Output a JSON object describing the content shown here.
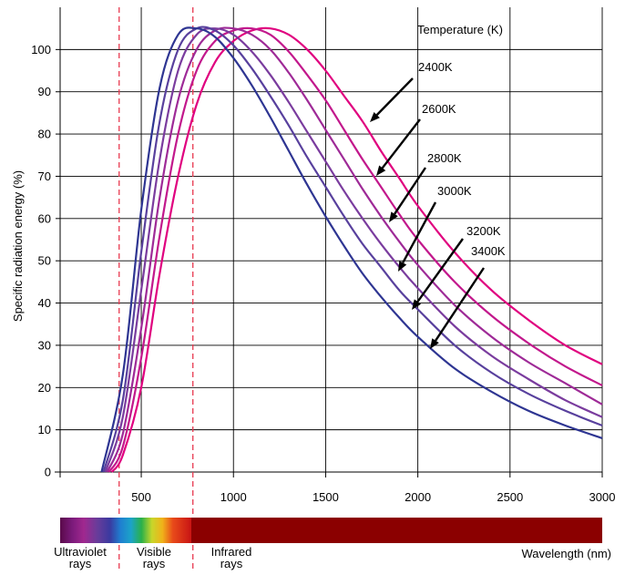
{
  "chart_data": {
    "type": "line",
    "title": "",
    "xlabel": "Wavelength (nm)",
    "ylabel": "Specific radiation energy (%)",
    "legend_title": "Temperature (K)",
    "xlim": [
      60,
      3000
    ],
    "ylim": [
      0,
      110
    ],
    "x_ticks": [
      500,
      1000,
      1500,
      2000,
      2500,
      3000
    ],
    "y_ticks": [
      0,
      10,
      20,
      30,
      40,
      50,
      60,
      70,
      80,
      90,
      100
    ],
    "grid": true,
    "boundaries_nm": [
      380,
      780
    ],
    "bands": [
      {
        "label": "Ultraviolet rays",
        "line1": "Ultraviolet",
        "line2": "rays"
      },
      {
        "label": "Visible rays",
        "line1": "Visible",
        "line2": "rays"
      },
      {
        "label": "Infrared rays",
        "line1": "Infrared",
        "line2": "rays"
      }
    ],
    "series": [
      {
        "name": "2400K",
        "color": "#e0007f",
        "peak_x": 1210,
        "peak_y": 105,
        "points": [
          [
            340,
            0
          ],
          [
            400,
            4
          ],
          [
            500,
            20
          ],
          [
            600,
            47
          ],
          [
            700,
            70
          ],
          [
            800,
            87
          ],
          [
            900,
            97
          ],
          [
            1000,
            102
          ],
          [
            1100,
            104.5
          ],
          [
            1200,
            105
          ],
          [
            1300,
            103.5
          ],
          [
            1400,
            100
          ],
          [
            1500,
            95
          ],
          [
            1600,
            89
          ],
          [
            1700,
            83
          ],
          [
            1800,
            76
          ],
          [
            1900,
            69.5
          ],
          [
            2000,
            63
          ],
          [
            2200,
            52
          ],
          [
            2400,
            43
          ],
          [
            2600,
            36
          ],
          [
            2800,
            30
          ],
          [
            3000,
            25.5
          ]
        ]
      },
      {
        "name": "2600K",
        "color": "#c2188c",
        "peak_x": 1120,
        "peak_y": 105,
        "points": [
          [
            325,
            0
          ],
          [
            400,
            6
          ],
          [
            500,
            27
          ],
          [
            600,
            56
          ],
          [
            700,
            80
          ],
          [
            800,
            95
          ],
          [
            900,
            102
          ],
          [
            1000,
            104.5
          ],
          [
            1100,
            105
          ],
          [
            1200,
            103.5
          ],
          [
            1300,
            99.5
          ],
          [
            1400,
            94
          ],
          [
            1500,
            88
          ],
          [
            1600,
            81
          ],
          [
            1700,
            74
          ],
          [
            1800,
            67.5
          ],
          [
            1900,
            61
          ],
          [
            2000,
            55
          ],
          [
            2200,
            45
          ],
          [
            2400,
            37
          ],
          [
            2600,
            30.5
          ],
          [
            2800,
            25
          ],
          [
            3000,
            20.5
          ]
        ]
      },
      {
        "name": "2800K",
        "color": "#9e2a97",
        "peak_x": 1040,
        "peak_y": 105,
        "points": [
          [
            315,
            0
          ],
          [
            400,
            9
          ],
          [
            500,
            34
          ],
          [
            600,
            65
          ],
          [
            700,
            88
          ],
          [
            800,
            100
          ],
          [
            900,
            104.5
          ],
          [
            1000,
            105
          ],
          [
            1100,
            103.5
          ],
          [
            1200,
            100
          ],
          [
            1300,
            94.5
          ],
          [
            1400,
            88
          ],
          [
            1500,
            81
          ],
          [
            1600,
            74
          ],
          [
            1700,
            67
          ],
          [
            1800,
            60.5
          ],
          [
            1900,
            54.5
          ],
          [
            2000,
            49
          ],
          [
            2200,
            39.5
          ],
          [
            2400,
            32
          ],
          [
            2600,
            26
          ],
          [
            2800,
            21
          ],
          [
            3000,
            16
          ]
        ]
      },
      {
        "name": "3000K",
        "color": "#7a3c9e",
        "peak_x": 970,
        "peak_y": 105,
        "points": [
          [
            305,
            0
          ],
          [
            400,
            13
          ],
          [
            500,
            43
          ],
          [
            600,
            74
          ],
          [
            700,
            95
          ],
          [
            800,
            103.5
          ],
          [
            900,
            105
          ],
          [
            1000,
            103.5
          ],
          [
            1100,
            99.5
          ],
          [
            1200,
            94
          ],
          [
            1300,
            87.5
          ],
          [
            1400,
            80.5
          ],
          [
            1500,
            73.5
          ],
          [
            1600,
            66.5
          ],
          [
            1700,
            60
          ],
          [
            1800,
            54
          ],
          [
            1900,
            48.5
          ],
          [
            2000,
            43.5
          ],
          [
            2200,
            34.5
          ],
          [
            2400,
            27.5
          ],
          [
            2600,
            22
          ],
          [
            2800,
            17
          ],
          [
            3000,
            13
          ]
        ]
      },
      {
        "name": "3200K",
        "color": "#58409d",
        "peak_x": 920,
        "peak_y": 105,
        "points": [
          [
            295,
            0
          ],
          [
            400,
            17
          ],
          [
            500,
            52
          ],
          [
            600,
            83
          ],
          [
            700,
            100
          ],
          [
            800,
            105
          ],
          [
            900,
            104.5
          ],
          [
            1000,
            101
          ],
          [
            1100,
            95.5
          ],
          [
            1200,
            89
          ],
          [
            1300,
            82
          ],
          [
            1400,
            74.5
          ],
          [
            1500,
            67.5
          ],
          [
            1600,
            60.5
          ],
          [
            1700,
            54
          ],
          [
            1800,
            48.5
          ],
          [
            1900,
            43
          ],
          [
            2000,
            38.5
          ],
          [
            2200,
            30
          ],
          [
            2400,
            23.5
          ],
          [
            2600,
            18.5
          ],
          [
            2800,
            14.5
          ],
          [
            3000,
            11
          ]
        ]
      },
      {
        "name": "3400K",
        "color": "#2e3592",
        "peak_x": 870,
        "peak_y": 105,
        "points": [
          [
            285,
            0
          ],
          [
            400,
            23
          ],
          [
            500,
            62
          ],
          [
            600,
            91
          ],
          [
            700,
            103.5
          ],
          [
            800,
            105
          ],
          [
            900,
            103
          ],
          [
            1000,
            98
          ],
          [
            1100,
            91.5
          ],
          [
            1200,
            84
          ],
          [
            1300,
            76
          ],
          [
            1400,
            68
          ],
          [
            1500,
            60.5
          ],
          [
            1600,
            53.5
          ],
          [
            1700,
            47
          ],
          [
            1800,
            41.5
          ],
          [
            1900,
            36.5
          ],
          [
            2000,
            32
          ],
          [
            2200,
            24.5
          ],
          [
            2400,
            19
          ],
          [
            2600,
            14.5
          ],
          [
            2800,
            11
          ],
          [
            3000,
            8
          ]
        ]
      }
    ]
  }
}
